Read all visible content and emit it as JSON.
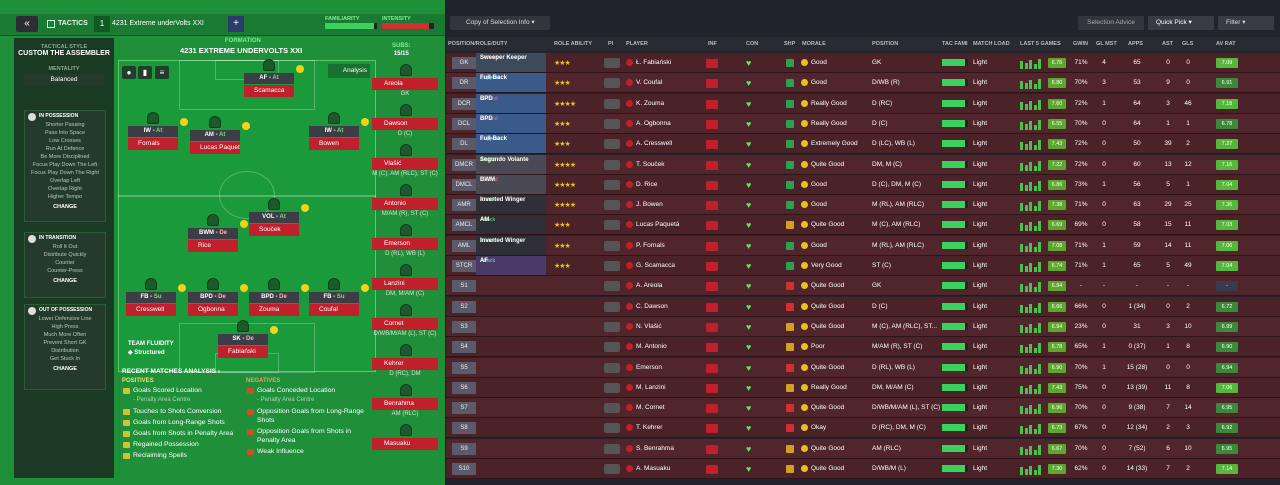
{
  "topbar": {
    "tactics_label": "TACTICS",
    "tactic_number": "1",
    "tactic_name": "4231 Extreme underVolts  XXI",
    "familiarity_label": "FAMILIARITY",
    "intensity_label": "INTENSITY",
    "familiarity": 0.95,
    "intensity": 0.9
  },
  "sidebar": {
    "tactical_style_label": "TACTICAL STYLE",
    "style_name": "CUSTOM THE ASSEMBLER",
    "mentality_label": "MENTALITY",
    "mentality": "Balanced",
    "in_possession": {
      "title": "IN POSSESSION",
      "items": [
        "Shorter Passing",
        "Pass Into Space",
        "Low Crosses",
        "Run At Defence",
        "Be More Disciplined",
        "Focus Play Down The Left",
        "Focus Play Down The Right",
        "Overlap Left",
        "Overlap Right",
        "Higher Tempo"
      ],
      "change": "CHANGE"
    },
    "in_transition": {
      "title": "IN TRANSITION",
      "items": [
        "Roll It Out",
        "Distribute Quickly",
        "Counter",
        "Counter-Press"
      ],
      "change": "CHANGE"
    },
    "out_of_possession": {
      "title": "OUT OF POSSESSION",
      "items": [
        "Lower Defensive Line",
        "High Press",
        "Much More Often",
        "Prevent Short GK",
        "Distribution",
        "Get Stuck In"
      ],
      "change": "CHANGE"
    }
  },
  "formation": {
    "label": "FORMATION",
    "name": "4231 EXTREME UNDERVOLTS  XXI",
    "subs_label": "SUBS:",
    "subs_value": "15/15",
    "analysis": "Analysis"
  },
  "pitch_players": [
    {
      "pos": "AF",
      "role": "At",
      "name": "Scamacca"
    },
    {
      "pos": "IW",
      "role": "At",
      "name": "Fornals"
    },
    {
      "pos": "AM",
      "role": "At",
      "name": "Lucas Paquetá"
    },
    {
      "pos": "IW",
      "role": "At",
      "name": "Bowen"
    },
    {
      "pos": "VOL",
      "role": "At",
      "name": "Souček"
    },
    {
      "pos": "BWM",
      "role": "De",
      "name": "Rice"
    },
    {
      "pos": "FB",
      "role": "Su",
      "name": "Cresswell"
    },
    {
      "pos": "BPD",
      "role": "De",
      "name": "Ogbonna"
    },
    {
      "pos": "BPD",
      "role": "De",
      "name": "Zouma"
    },
    {
      "pos": "FB",
      "role": "Su",
      "name": "Coufal"
    },
    {
      "pos": "SK",
      "role": "De",
      "name": "Fabiański"
    }
  ],
  "subs": [
    {
      "name": "Areola",
      "pos": "GK"
    },
    {
      "name": "Dawson",
      "pos": "D (C)"
    },
    {
      "name": "Vlašić",
      "pos": "M (C), AM (RLC), ST (C)"
    },
    {
      "name": "Antonio",
      "pos": "M/AM (R), ST (C)"
    },
    {
      "name": "Emerson",
      "pos": "D (RL), WB (L)"
    },
    {
      "name": "Lanzini",
      "pos": "DM, M/AM (C)"
    },
    {
      "name": "Cornet",
      "pos": "D/WB/M/AM (L), ST (C)"
    },
    {
      "name": "Kehrer",
      "pos": "D (RC), DM"
    },
    {
      "name": "Benrahma",
      "pos": "AM (RLC)"
    },
    {
      "name": "Masuaku",
      "pos": ""
    }
  ],
  "fluidity": {
    "label": "TEAM FLUIDITY",
    "value": "Structured"
  },
  "recent": {
    "title": "RECENT MATCHES ANALYSIS",
    "positives_label": "POSITIVES",
    "negatives_label": "NEGATIVES",
    "positives": [
      "Goals Scored Location",
      "Touches to Shots Conversion",
      "Goals from Long-Range Shots",
      "Goals from Shots in Penalty Area",
      "Regained Possession",
      "Reclaiming Spells"
    ],
    "positives_sub": "- Penalty Area Centre",
    "negatives": [
      "Goals Conceded Location",
      "Opposition Goals from Long-Range Shots",
      "Opposition Goals from Shots in Penalty Area",
      "Weak Influence"
    ],
    "negatives_sub": "- Penalty Area Centre"
  },
  "right_toolbar": {
    "copy": "Copy of Selection Info",
    "advice": "Selection Advice",
    "quick_pick": "Quick Pick",
    "filter": "Filter"
  },
  "columns": {
    "pos": "POSITION/ROLE/DUTY",
    "ra": "ROLE ABILITY",
    "pi": "PI",
    "player": "PLAYER",
    "inf": "INF",
    "con": "CON",
    "shp": "SHP",
    "morale": "MORALE",
    "position": "POSITION",
    "tacfam": "TAC FAMI",
    "load": "MATCH LOAD",
    "last5": "LAST 5 GAMES",
    "gwin": "GWIN",
    "glmst": "GL MST",
    "apps": "APPS",
    "ast": "AST",
    "gls": "GLS",
    "avr": "AV RAT"
  },
  "rows": [
    {
      "pos": "GK",
      "role": "Sweeper Keeper",
      "duty": "Defend",
      "stars": "★★★",
      "player": "Ł. Fabiański",
      "morale": "Good",
      "position": "GK",
      "load": "Light",
      "f5": "6.76",
      "gwin": "71%",
      "glm": "4",
      "apps": "65",
      "ast": "0",
      "gls": "0",
      "avr": "7.09",
      "shp": "g"
    },
    {
      "pos": "DR",
      "role": "Full-Back",
      "duty": "Support",
      "stars": "★★★",
      "player": "V. Coufal",
      "morale": "Good",
      "position": "D/WB (R)",
      "load": "Light",
      "f5": "6.80",
      "gwin": "70%",
      "glm": "3",
      "apps": "53",
      "ast": "9",
      "gls": "0",
      "avr": "6.91",
      "shp": "g"
    },
    {
      "pos": "DCR",
      "role": "BPD",
      "duty": "Defend",
      "stars": "★★★★",
      "player": "K. Zouma",
      "morale": "Really Good",
      "position": "D (RC)",
      "load": "Light",
      "f5": "7.60",
      "gwin": "72%",
      "glm": "1",
      "apps": "64",
      "ast": "3",
      "gls": "46",
      "avr": "7.18",
      "shp": "g"
    },
    {
      "pos": "DCL",
      "role": "BPD",
      "duty": "Defend",
      "stars": "★★★",
      "player": "A. Ogbonna",
      "morale": "Really Good",
      "position": "D (C)",
      "load": "Light",
      "f5": "6.55",
      "gwin": "70%",
      "glm": "0",
      "apps": "64",
      "ast": "1",
      "gls": "1",
      "avr": "6.78",
      "shp": "g"
    },
    {
      "pos": "DL",
      "role": "Full-Back",
      "duty": "Support",
      "stars": "★★★",
      "player": "A. Cresswell",
      "morale": "Extremely Good",
      "position": "D (LC), WB (L)",
      "load": "Light",
      "f5": "7.43",
      "gwin": "72%",
      "glm": "0",
      "apps": "50",
      "ast": "39",
      "gls": "2",
      "avr": "7.27",
      "shp": "g"
    },
    {
      "pos": "DMCR",
      "role": "Segundo Volante",
      "duty": "Attack",
      "stars": "★★★★",
      "player": "T. Souček",
      "morale": "Quite Good",
      "position": "DM, M (C)",
      "load": "Light",
      "f5": "7.22",
      "gwin": "72%",
      "glm": "0",
      "apps": "60",
      "ast": "13",
      "gls": "12",
      "avr": "7.16",
      "shp": "g"
    },
    {
      "pos": "DMCL",
      "role": "BWM",
      "duty": "Defend",
      "stars": "★★★★",
      "player": "D. Rice",
      "morale": "Good",
      "position": "D (C), DM, M (C)",
      "load": "Light",
      "f5": "6.86",
      "gwin": "73%",
      "glm": "1",
      "apps": "56",
      "ast": "5",
      "gls": "1",
      "avr": "7.04",
      "shp": "g"
    },
    {
      "pos": "AMR",
      "role": "Inverted Winger",
      "duty": "Attack",
      "stars": "★★★★",
      "player": "J. Bowen",
      "morale": "Good",
      "position": "M (RL), AM (RLC)",
      "load": "Light",
      "f5": "7.38",
      "gwin": "71%",
      "glm": "0",
      "apps": "63",
      "ast": "29",
      "gls": "25",
      "avr": "7.36",
      "shp": "g"
    },
    {
      "pos": "AMCL",
      "role": "AM",
      "duty": "Attack",
      "stars": "★★★",
      "player": "Lucas Paquetá",
      "morale": "Quite Good",
      "position": "M (C), AM (RLC)",
      "load": "Light",
      "f5": "6.69",
      "gwin": "69%",
      "glm": "0",
      "apps": "58",
      "ast": "15",
      "gls": "11",
      "avr": "7.03",
      "shp": "y"
    },
    {
      "pos": "AML",
      "role": "Inverted Winger",
      "duty": "Attack",
      "stars": "★★★",
      "player": "P. Fornals",
      "morale": "Good",
      "position": "M (RL), AM (RLC)",
      "load": "Light",
      "f5": "7.08",
      "gwin": "71%",
      "glm": "1",
      "apps": "59",
      "ast": "14",
      "gls": "11",
      "avr": "7.06",
      "shp": "g"
    },
    {
      "pos": "STCR",
      "role": "AF",
      "duty": "Attack",
      "stars": "★★★",
      "player": "G. Scamacca",
      "morale": "Very Good",
      "position": "ST (C)",
      "load": "Light",
      "f5": "6.74",
      "gwin": "71%",
      "glm": "1",
      "apps": "65",
      "ast": "5",
      "gls": "49",
      "avr": "7.04",
      "shp": "g"
    },
    {
      "pos": "S1",
      "role": "",
      "duty": "",
      "stars": "",
      "player": "A. Areola",
      "morale": "Quite Good",
      "position": "GK",
      "load": "Light",
      "f5": "6.94",
      "gwin": "-",
      "glm": "-",
      "apps": "-",
      "ast": "-",
      "gls": "-",
      "avr": "-",
      "shp": "r"
    },
    {
      "pos": "S2",
      "role": "",
      "duty": "",
      "stars": "",
      "player": "C. Dawson",
      "morale": "Quite Good",
      "position": "D (C)",
      "load": "Light",
      "f5": "6.66",
      "gwin": "66%",
      "glm": "0",
      "apps": "1 (34)",
      "ast": "0",
      "gls": "2",
      "avr": "6.72",
      "shp": "r"
    },
    {
      "pos": "S3",
      "role": "",
      "duty": "",
      "stars": "",
      "player": "N. Vlašić",
      "morale": "Quite Good",
      "position": "M (C), AM (RLC), ST...",
      "load": "Light",
      "f5": "6.94",
      "gwin": "23%",
      "glm": "0",
      "apps": "31",
      "ast": "3",
      "gls": "10",
      "avr": "6.99",
      "shp": "y"
    },
    {
      "pos": "S4",
      "role": "",
      "duty": "",
      "stars": "",
      "player": "M. Antonio",
      "morale": "Poor",
      "position": "M/AM (R), ST (C)",
      "load": "Light",
      "f5": "6.78",
      "gwin": "65%",
      "glm": "1",
      "apps": "0 (37)",
      "ast": "1",
      "gls": "8",
      "avr": "6.90",
      "shp": "y"
    },
    {
      "pos": "S5",
      "role": "",
      "duty": "",
      "stars": "",
      "player": "Emerson",
      "morale": "Quite Good",
      "position": "D (RL), WB (L)",
      "load": "Light",
      "f5": "6.90",
      "gwin": "70%",
      "glm": "1",
      "apps": "15 (28)",
      "ast": "0",
      "gls": "0",
      "avr": "6.94",
      "shp": "r"
    },
    {
      "pos": "S6",
      "role": "",
      "duty": "",
      "stars": "",
      "player": "M. Lanzini",
      "morale": "Really Good",
      "position": "DM, M/AM (C)",
      "load": "Light",
      "f5": "7.43",
      "gwin": "75%",
      "glm": "0",
      "apps": "13 (39)",
      "ast": "11",
      "gls": "8",
      "avr": "7.06",
      "shp": "y"
    },
    {
      "pos": "S7",
      "role": "",
      "duty": "",
      "stars": "",
      "player": "M. Cornet",
      "morale": "Quite Good",
      "position": "D/WB/M/AM (L), ST (C)",
      "load": "Light",
      "f5": "6.96",
      "gwin": "70%",
      "glm": "0",
      "apps": "9 (38)",
      "ast": "7",
      "gls": "14",
      "avr": "6.95",
      "shp": "r"
    },
    {
      "pos": "S8",
      "role": "",
      "duty": "",
      "stars": "",
      "player": "T. Kehrer",
      "morale": "Okay",
      "position": "D (RC), DM, M (C)",
      "load": "Light",
      "f5": "6.73",
      "gwin": "67%",
      "glm": "0",
      "apps": "12 (34)",
      "ast": "2",
      "gls": "3",
      "avr": "6.92",
      "shp": "r"
    },
    {
      "pos": "S9",
      "role": "",
      "duty": "",
      "stars": "",
      "player": "S. Benrahma",
      "morale": "Quite Good",
      "position": "AM (RLC)",
      "load": "Light",
      "f5": "6.67",
      "gwin": "70%",
      "glm": "0",
      "apps": "7 (52)",
      "ast": "6",
      "gls": "10",
      "avr": "6.95",
      "shp": "y"
    },
    {
      "pos": "S10",
      "role": "",
      "duty": "",
      "stars": "",
      "player": "A. Masuaku",
      "morale": "Quite Good",
      "position": "D/WB/M (L)",
      "load": "Light",
      "f5": "7.30",
      "gwin": "62%",
      "glm": "0",
      "apps": "14 (33)",
      "ast": "7",
      "gls": "2",
      "avr": "7.14",
      "shp": "y"
    }
  ]
}
